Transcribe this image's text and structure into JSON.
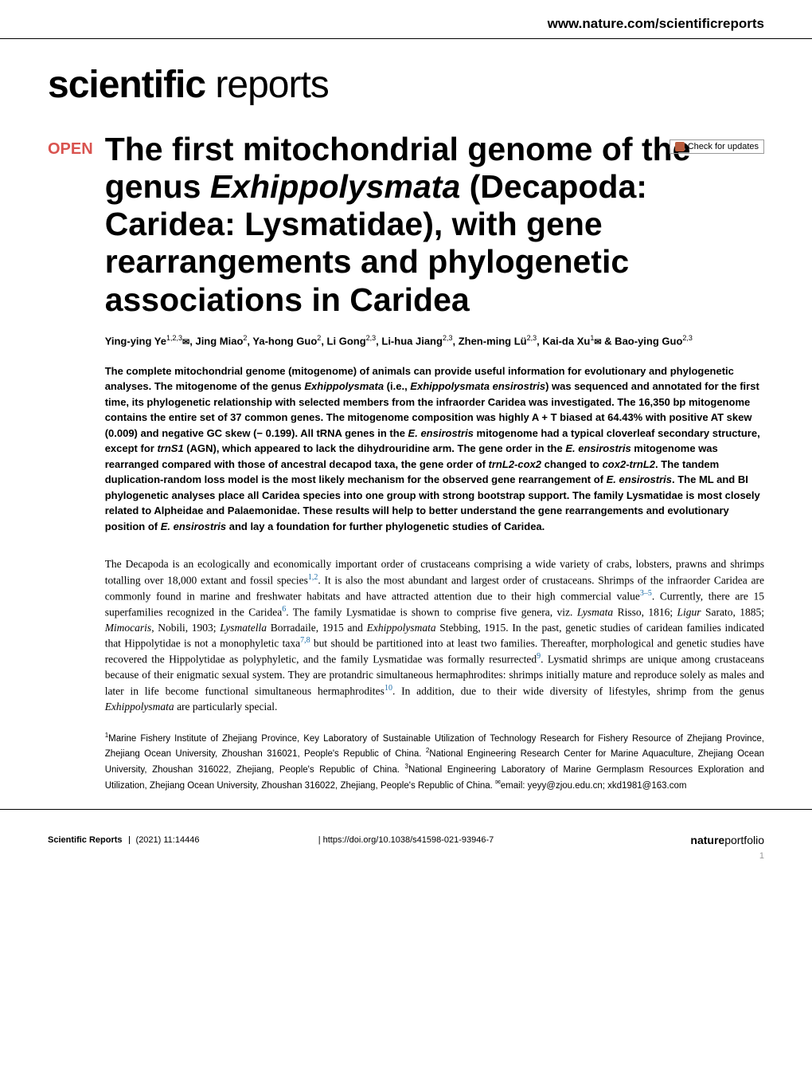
{
  "header": {
    "url": "www.nature.com/scientificreports",
    "logo_bold": "scientific",
    "logo_light": " reports",
    "check_updates": "Check for updates"
  },
  "article": {
    "open_label": "OPEN",
    "title_html": "The first mitochondrial genome of the genus <em>Exhippolysmata</em> (Decapoda: Caridea: Lysmatidae), with gene rearrangements and phylogenetic associations in Caridea",
    "authors_html": "Ying-ying Ye<sup>1,2,3</sup><span class='envelope'>✉</span>, Jing Miao<sup>2</sup>, Ya-hong Guo<sup>2</sup>, Li Gong<sup>2,3</sup>, Li-hua Jiang<sup>2,3</sup>, Zhen-ming Lü<sup>2,3</sup>, Kai-da Xu<sup>1</sup><span class='envelope'>✉</span> & Bao-ying Guo<sup>2,3</sup>",
    "abstract_html": "The complete mitochondrial genome (mitogenome) of animals can provide useful information for evolutionary and phylogenetic analyses. The mitogenome of the genus <em>Exhippolysmata</em> (i.e., <em>Exhippolysmata ensirostris</em>) was sequenced and annotated for the first time, its phylogenetic relationship with selected members from the infraorder Caridea was investigated. The 16,350 bp mitogenome contains the entire set of 37 common genes. The mitogenome composition was highly A + T biased at 64.43% with positive AT skew (0.009) and negative GC skew (− 0.199). All tRNA genes in the <em>E. ensirostris</em> mitogenome had a typical cloverleaf secondary structure, except for <em>trnS1</em> (AGN), which appeared to lack the dihydrouridine arm. The gene order in the <em>E. ensirostris</em> mitogenome was rearranged compared with those of ancestral decapod taxa, the gene order of <em>trnL2-cox2</em> changed to <em>cox2-trnL2</em>. The tandem duplication-random loss model is the most likely mechanism for the observed gene rearrangement of <em>E. ensirostris</em>. The ML and BI phylogenetic analyses place all Caridea species into one group with strong bootstrap support. The family Lysmatidae is most closely related to Alpheidae and Palaemonidae. These results will help to better understand the gene rearrangements and evolutionary position of <em>E. ensirostris</em> and lay a foundation for further phylogenetic studies of Caridea.",
    "body_html": "The Decapoda is an ecologically and economically important order of crustaceans comprising a wide variety of crabs, lobsters, prawns and shrimps totalling over 18,000 extant and fossil species<sup>1,2</sup>. It is also the most abundant and largest order of crustaceans. Shrimps of the infraorder Caridea are commonly found in marine and freshwater habitats and have attracted attention due to their high commercial value<sup>3–5</sup>. Currently, there are 15 superfamilies recognized in the Caridea<sup>6</sup>. The family Lysmatidae is shown to comprise five genera, viz. <em>Lysmata</em> Risso, 1816; <em>Ligur</em> Sarato, 1885; <em>Mimocaris</em>, Nobili, 1903; <em>Lysmatella</em> Borradaile, 1915 and <em>Exhippolysmata</em> Stebbing, 1915. In the past, genetic studies of caridean families indicated that Hippolytidae is not a monophyletic taxa<sup>7,8</sup> but should be partitioned into at least two families. Thereafter, morphological and genetic studies have recovered the Hippolytidae as polyphyletic, and the family Lysmatidae was formally resurrected<sup>9</sup>. Lysmatid shrimps are unique among crustaceans because of their enigmatic sexual system. They are protandric simultaneous hermaphrodites: shrimps initially mature and reproduce solely as males and later in life become functional simultaneous hermaphrodites<sup>10</sup>. In addition, due to their wide diversity of lifestyles, shrimp from the genus <em>Exhippolysmata</em> are particularly special.",
    "affiliations_html": "<sup>1</sup>Marine Fishery Institute of Zhejiang Province, Key Laboratory of Sustainable Utilization of Technology Research for Fishery Resource of Zhejiang Province, Zhejiang Ocean University, Zhoushan 316021, People's Republic of China. <sup>2</sup>National Engineering Research Center for Marine Aquaculture, Zhejiang Ocean University, Zhoushan 316022, Zhejiang, People's Republic of China. <sup>3</sup>National Engineering Laboratory of Marine Germplasm Resources Exploration and Utilization, Zhejiang Ocean University, Zhoushan 316022, Zhejiang, People's Republic of China. <sup>✉</sup>email: yeyy@zjou.edu.cn; xkd1981@163.com"
  },
  "footer": {
    "journal": "Scientific Reports",
    "volume_info": "(2021) 11:14446",
    "doi": "https://doi.org/10.1038/s41598-021-93946-7",
    "publisher_bold": "nature",
    "publisher_light": "portfolio",
    "page_num": "1"
  },
  "colors": {
    "open_red": "#d9534f",
    "link_blue": "#1a6ca8",
    "icon_orange": "#b85c3d"
  },
  "typography": {
    "title_fontsize": 41,
    "logo_fontsize": 48,
    "body_fontsize": 13.5,
    "abstract_fontsize": 13,
    "authors_fontsize": 13,
    "affiliations_fontsize": 11.5,
    "footer_fontsize": 11
  }
}
